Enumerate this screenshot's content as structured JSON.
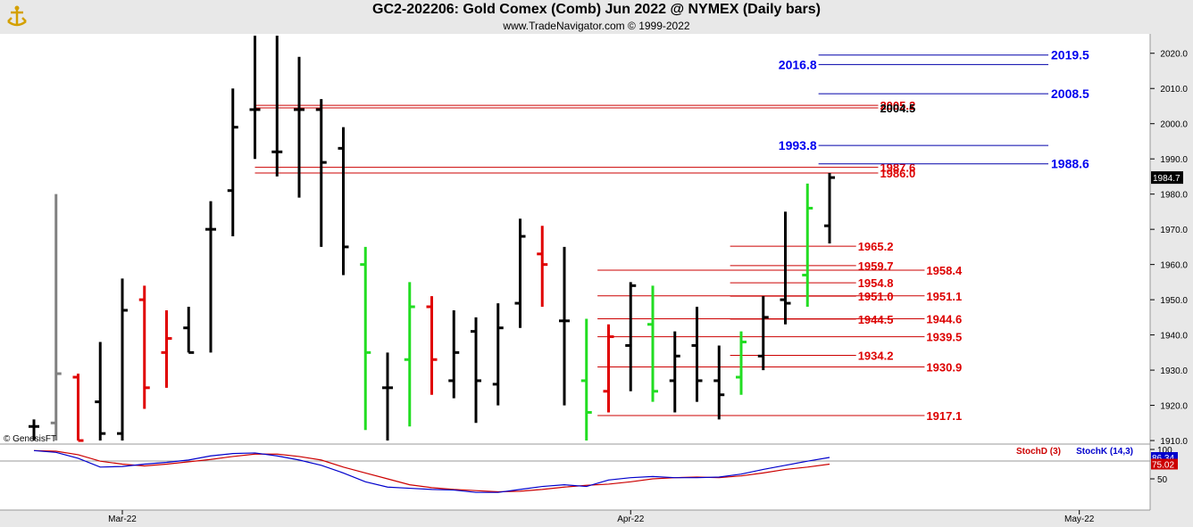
{
  "header": {
    "title": "GC2-202206:  Gold Comex (Comb) Jun 2022 @ NYMEX  (Daily bars)",
    "subtitle": "www.TradeNavigator.com © 1999-2022",
    "watermark": "© GenesisFT"
  },
  "chart_data": {
    "type": "ohlc-bar",
    "y_axis": {
      "ticks": [
        1910,
        1920,
        1930,
        1940,
        1950,
        1960,
        1970,
        1980,
        1990,
        2000,
        2010,
        2020
      ],
      "tick_labels": [
        "1910.0",
        "1920.0",
        "1930.0",
        "1940.0",
        "1950.0",
        "1960.0",
        "1970.0",
        "1980.0",
        "1990.0",
        "2000.0",
        "2010.0",
        "2020.0"
      ],
      "last_price_label": "1984.7",
      "last_price": 1984.7,
      "range": [
        1909,
        2025
      ]
    },
    "x_axis": {
      "labels": [
        {
          "text": "Mar-22",
          "bar_index": 4
        },
        {
          "text": "Apr-22",
          "bar_index": 27
        },
        {
          "text": "May-22",
          "bar_index": 47.3
        }
      ]
    },
    "bar_colors": {
      "up": "#000000",
      "gray": "#808080",
      "red": "#e00000",
      "green": "#22dd22"
    },
    "bars": [
      {
        "c": "black",
        "o": 1914,
        "h": 1916,
        "l": 1910,
        "c_": 1914
      },
      {
        "c": "gray",
        "o": 1915,
        "h": 1980,
        "l": 1910,
        "c_": 1929
      },
      {
        "c": "red",
        "o": 1928,
        "h": 1929,
        "l": 1910,
        "c_": 1910
      },
      {
        "c": "black",
        "o": 1921,
        "h": 1938,
        "l": 1910,
        "c_": 1912
      },
      {
        "c": "black",
        "o": 1912,
        "h": 1956,
        "l": 1910,
        "c_": 1947
      },
      {
        "c": "red",
        "o": 1950,
        "h": 1954,
        "l": 1919,
        "c_": 1925
      },
      {
        "c": "red",
        "o": 1935,
        "h": 1947,
        "l": 1925,
        "c_": 1939
      },
      {
        "c": "black",
        "o": 1942,
        "h": 1948,
        "l": 1935,
        "c_": 1935
      },
      {
        "c": "black",
        "o": 1970,
        "h": 1978,
        "l": 1935,
        "c_": 1970
      },
      {
        "c": "black",
        "o": 1981,
        "h": 2010,
        "l": 1968,
        "c_": 1999
      },
      {
        "c": "black",
        "o": 2004,
        "h": 2025,
        "l": 1990,
        "c_": 2004
      },
      {
        "c": "black",
        "o": 1992,
        "h": 2025,
        "l": 1985,
        "c_": 1992
      },
      {
        "c": "black",
        "o": 2004,
        "h": 2019,
        "l": 1979,
        "c_": 2004
      },
      {
        "c": "black",
        "o": 2004,
        "h": 2007,
        "l": 1965,
        "c_": 1989
      },
      {
        "c": "black",
        "o": 1993,
        "h": 1999,
        "l": 1957,
        "c_": 1965
      },
      {
        "c": "green",
        "o": 1960,
        "h": 1965,
        "l": 1913,
        "c_": 1935
      },
      {
        "c": "black",
        "o": 1925,
        "h": 1935,
        "l": 1910,
        "c_": 1925
      },
      {
        "c": "green",
        "o": 1933,
        "h": 1955,
        "l": 1914,
        "c_": 1948
      },
      {
        "c": "red",
        "o": 1948,
        "h": 1951,
        "l": 1923,
        "c_": 1933
      },
      {
        "c": "black",
        "o": 1927,
        "h": 1947,
        "l": 1922,
        "c_": 1935
      },
      {
        "c": "black",
        "o": 1941,
        "h": 1945,
        "l": 1915,
        "c_": 1927
      },
      {
        "c": "black",
        "o": 1926,
        "h": 1949,
        "l": 1920,
        "c_": 1942
      },
      {
        "c": "black",
        "o": 1949,
        "h": 1973,
        "l": 1942,
        "c_": 1968
      },
      {
        "c": "red",
        "o": 1963,
        "h": 1971,
        "l": 1948,
        "c_": 1960
      },
      {
        "c": "black",
        "o": 1944,
        "h": 1965,
        "l": 1920,
        "c_": 1944
      },
      {
        "c": "green",
        "o": 1927,
        "h": 1944.6,
        "l": 1910,
        "c_": 1918
      },
      {
        "c": "red",
        "o": 1924,
        "h": 1943,
        "l": 1918,
        "c_": 1939.5
      },
      {
        "c": "black",
        "o": 1937,
        "h": 1955,
        "l": 1924,
        "c_": 1954
      },
      {
        "c": "green",
        "o": 1943,
        "h": 1954,
        "l": 1921,
        "c_": 1924
      },
      {
        "c": "black",
        "o": 1927,
        "h": 1941,
        "l": 1918,
        "c_": 1934
      },
      {
        "c": "black",
        "o": 1937,
        "h": 1948,
        "l": 1921,
        "c_": 1927
      },
      {
        "c": "black",
        "o": 1927,
        "h": 1937,
        "l": 1916,
        "c_": 1923
      },
      {
        "c": "green",
        "o": 1928,
        "h": 1941,
        "l": 1923,
        "c_": 1938
      },
      {
        "c": "black",
        "o": 1934,
        "h": 1951,
        "l": 1930,
        "c_": 1945
      },
      {
        "c": "black",
        "o": 1950,
        "h": 1975,
        "l": 1943,
        "c_": 1949
      },
      {
        "c": "green",
        "o": 1957,
        "h": 1983,
        "l": 1948,
        "c_": 1976
      },
      {
        "c": "black",
        "o": 1971,
        "h": 1986,
        "l": 1966,
        "c_": 1984.7
      }
    ],
    "levels_blue": [
      {
        "value": 2019.5,
        "label": "2019.5",
        "x_from": 35.5,
        "x_to": 45.9,
        "label_pos": "right"
      },
      {
        "value": 2016.8,
        "label": "2016.8",
        "x_from": 35.5,
        "x_to": 45.9,
        "label_pos": "left"
      },
      {
        "value": 2008.5,
        "label": "2008.5",
        "x_from": 35.5,
        "x_to": 45.9,
        "label_pos": "right"
      },
      {
        "value": 1993.8,
        "label": "1993.8",
        "x_from": 35.5,
        "x_to": 45.9,
        "label_pos": "left"
      },
      {
        "value": 1988.6,
        "label": "1988.6",
        "x_from": 35.5,
        "x_to": 45.9,
        "label_pos": "right"
      }
    ],
    "levels_red": [
      {
        "value": 2005.2,
        "label": "2005.2",
        "x_from": 10.0,
        "x_to": 38.2
      },
      {
        "value": 2004.5,
        "label": "2004.5",
        "x_from": 10.0,
        "x_to": 38.2
      },
      {
        "value": 1987.6,
        "label": "1987.6",
        "x_from": 10.0,
        "x_to": 38.2
      },
      {
        "value": 1986.0,
        "label": "1986.0",
        "x_from": 10.0,
        "x_to": 38.2
      },
      {
        "value": 1965.2,
        "label": "1965.2",
        "x_from": 31.5,
        "x_to": 37.2
      },
      {
        "value": 1959.7,
        "label": "1959.7",
        "x_from": 31.5,
        "x_to": 37.2
      },
      {
        "value": 1958.4,
        "label": "1958.4",
        "x_from": 25.5,
        "x_to": 40.3
      },
      {
        "value": 1954.8,
        "label": "1954.8",
        "x_from": 31.5,
        "x_to": 37.2
      },
      {
        "value": 1951.1,
        "label": "1951.1",
        "x_from": 25.5,
        "x_to": 40.3
      },
      {
        "value": 1951.0,
        "label": "1951.0",
        "x_from": 31.5,
        "x_to": 37.2
      },
      {
        "value": 1944.6,
        "label": "1944.6",
        "x_from": 25.5,
        "x_to": 40.3
      },
      {
        "value": 1944.5,
        "label": "1944.5",
        "x_from": 31.5,
        "x_to": 37.2
      },
      {
        "value": 1939.5,
        "label": "1939.5",
        "x_from": 25.5,
        "x_to": 40.3
      },
      {
        "value": 1934.2,
        "label": "1934.2",
        "x_from": 31.5,
        "x_to": 37.2
      },
      {
        "value": 1930.9,
        "label": "1930.9",
        "x_from": 25.5,
        "x_to": 40.3
      },
      {
        "value": 1917.1,
        "label": "1917.1",
        "x_from": 25.5,
        "x_to": 40.3
      }
    ],
    "stochastic": {
      "ticks": [
        50,
        100
      ],
      "stochd_label": "StochD (3)",
      "stochk_label": "StochK (14,3)",
      "stochd_value": "75.02",
      "stochk_value": "86.34",
      "stochd_last": 75.02,
      "stochk_last": 86.34,
      "stochd_color": "#cc0000",
      "stochk_color": "#0000cc",
      "stochk": [
        98,
        95,
        85,
        70,
        71,
        75,
        78,
        82,
        89,
        93,
        94,
        89,
        82,
        73,
        60,
        45,
        36,
        34,
        32,
        31,
        27,
        27,
        32,
        37,
        40,
        37,
        48,
        52,
        54,
        52,
        52,
        53,
        58,
        66,
        73,
        80,
        86.34
      ],
      "stochd": [
        98,
        97,
        91,
        80,
        75,
        72,
        75,
        79,
        83,
        88,
        92,
        92,
        88,
        82,
        70,
        60,
        50,
        40,
        35,
        32,
        30,
        28,
        29,
        32,
        36,
        39,
        41,
        45,
        50,
        52,
        53,
        52,
        55,
        60,
        66,
        70,
        75.02
      ]
    }
  }
}
